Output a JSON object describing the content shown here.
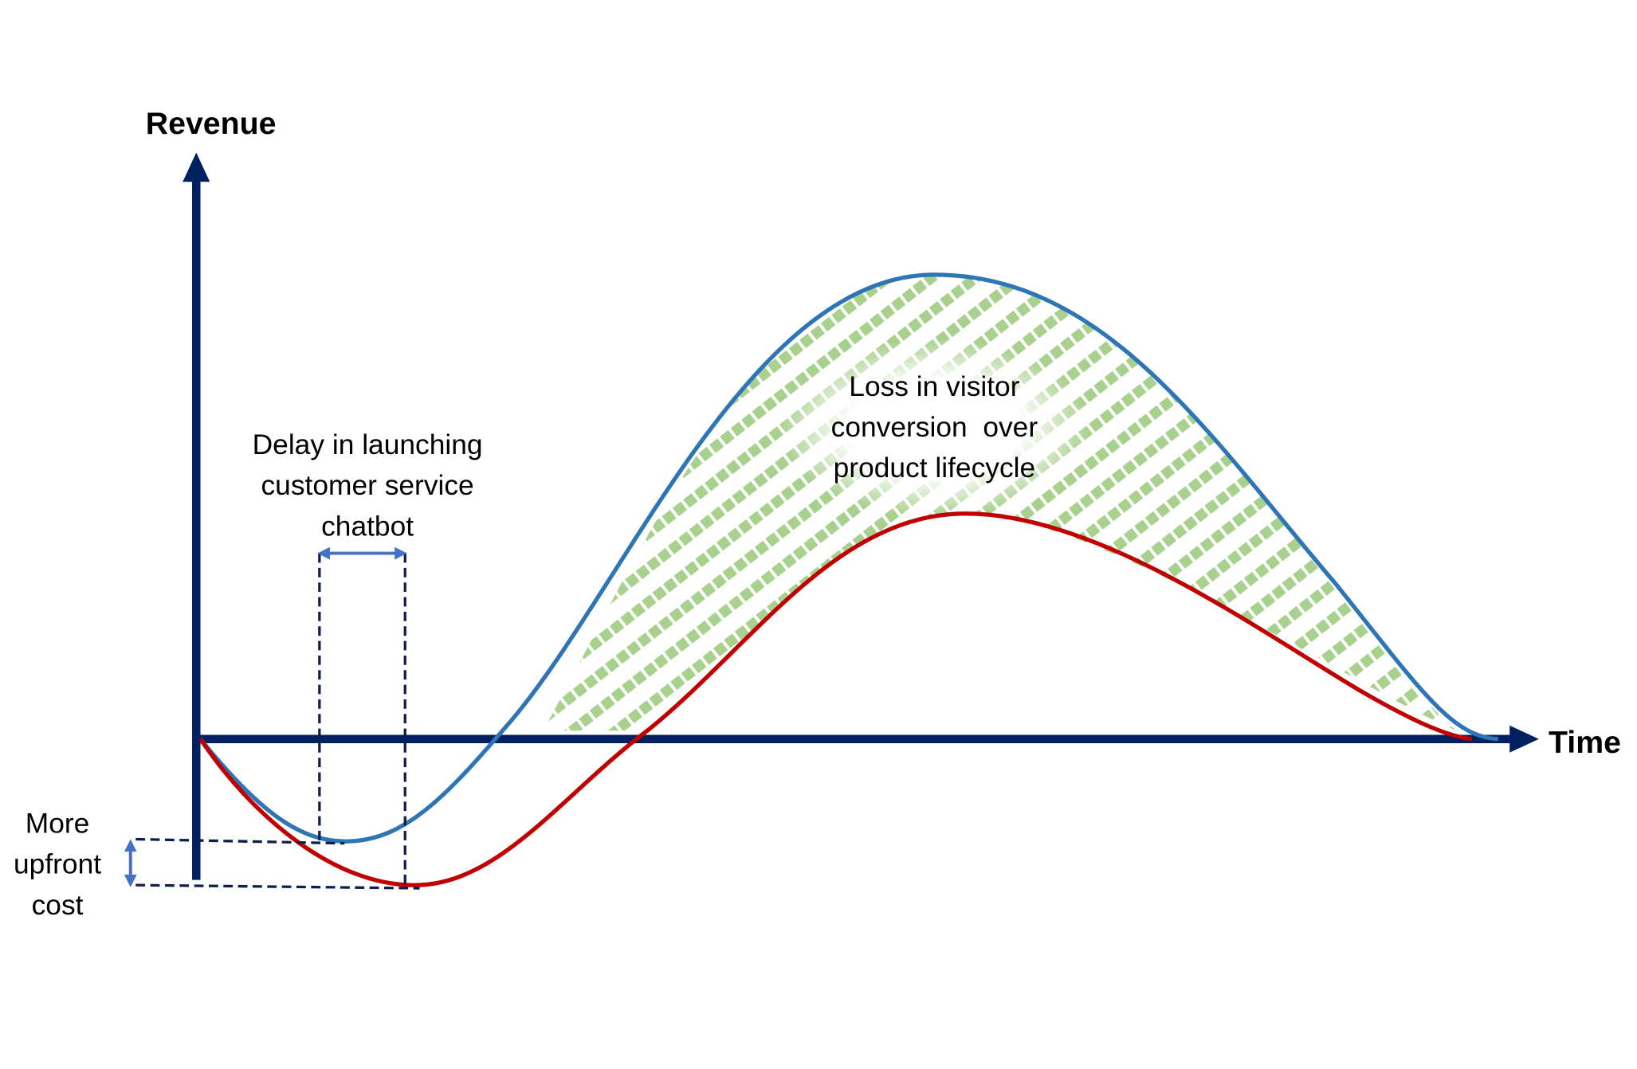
{
  "axes": {
    "y_label": "Revenue",
    "x_label": "Time"
  },
  "annotations": {
    "delay": [
      "Delay in launching",
      "customer service",
      "chatbot"
    ],
    "cost": [
      "More",
      "upfront",
      "cost"
    ],
    "loss": [
      "Loss in visitor",
      "conversion  over",
      "product lifecycle"
    ]
  }
}
